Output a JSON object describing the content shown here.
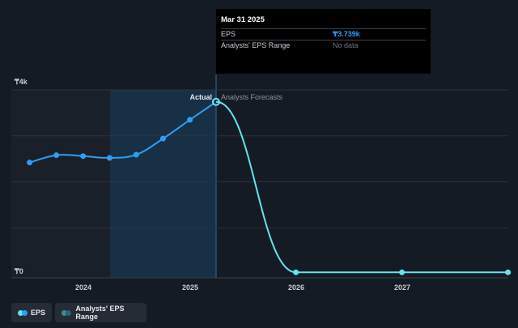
{
  "chart_data": {
    "type": "line",
    "y_axis": {
      "ticks": [
        "₸4k",
        "₸0"
      ],
      "ylim": [
        0,
        4000
      ]
    },
    "x_axis": {
      "ticks": [
        "2024",
        "2025",
        "2026",
        "2027"
      ]
    },
    "labels": {
      "actual": "Actual",
      "forecast": "Analysts Forecasts"
    },
    "series": [
      {
        "name": "EPS",
        "color": "#2e9ef5",
        "x": [
          "2023-06-30",
          "2023-09-30",
          "2023-12-31",
          "2024-03-31",
          "2024-06-30",
          "2024-09-30",
          "2024-12-31",
          "2025-03-31"
        ],
        "values": [
          2420,
          2580,
          2560,
          2520,
          2590,
          2940,
          3350,
          3739
        ]
      },
      {
        "name": "EPS Forecast",
        "color": "#64e3f0",
        "x": [
          "2025-03-31",
          "2025-12-31",
          "2026-12-31",
          "2027-12-31"
        ],
        "values": [
          3739,
          30,
          30,
          30
        ]
      }
    ],
    "grid": true
  },
  "tooltip": {
    "date": "Mar 31 2025",
    "rows": [
      {
        "label": "EPS",
        "value": "₸3.739k"
      },
      {
        "label": "Analysts' EPS Range",
        "value": "No data"
      }
    ]
  },
  "legend": {
    "items": [
      {
        "label": "EPS",
        "color1": "#2e9ef5",
        "color2": "#64e3f0"
      },
      {
        "label": "Analysts' EPS Range",
        "color1": "#2a5f86",
        "color2": "#3e8d8d"
      }
    ]
  }
}
